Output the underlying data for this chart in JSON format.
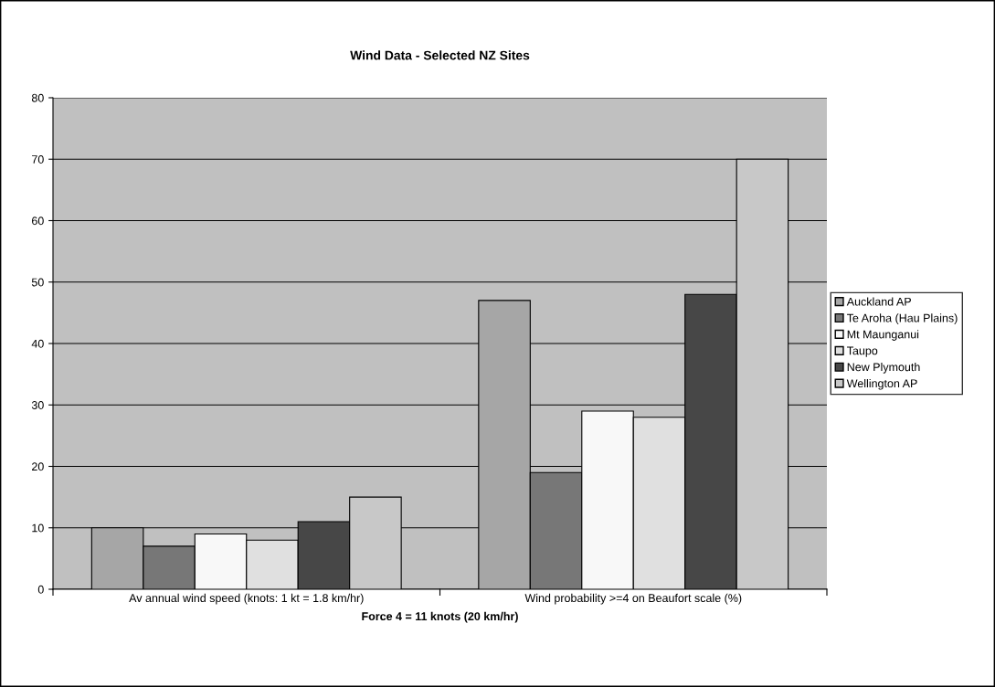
{
  "chart_data": {
    "type": "bar",
    "title": "Wind Data - Selected NZ Sites",
    "xlabel": "Force 4 = 11 knots (20 km/hr)",
    "categories": [
      "Av annual wind speed (knots: 1 kt = 1.8 km/hr)",
      "Wind probability >=4 on Beaufort scale (%)"
    ],
    "series": [
      {
        "name": "Auckland AP",
        "color": "#a6a6a6",
        "values": [
          10,
          47
        ]
      },
      {
        "name": "Te Aroha (Hau Plains)",
        "color": "#777777",
        "values": [
          7,
          19
        ]
      },
      {
        "name": "Mt Maunganui",
        "color": "#f8f8f8",
        "values": [
          9,
          29
        ]
      },
      {
        "name": "Taupo",
        "color": "#e0e0e0",
        "values": [
          8,
          28
        ]
      },
      {
        "name": "New Plymouth",
        "color": "#474747",
        "values": [
          11,
          48
        ]
      },
      {
        "name": "Wellington AP",
        "color": "#c8c8c8",
        "values": [
          15,
          70
        ]
      }
    ],
    "ylim": [
      0,
      80
    ],
    "yticks": [
      0,
      10,
      20,
      30,
      40,
      50,
      60,
      70,
      80
    ],
    "grid": "y",
    "legend": "right"
  }
}
